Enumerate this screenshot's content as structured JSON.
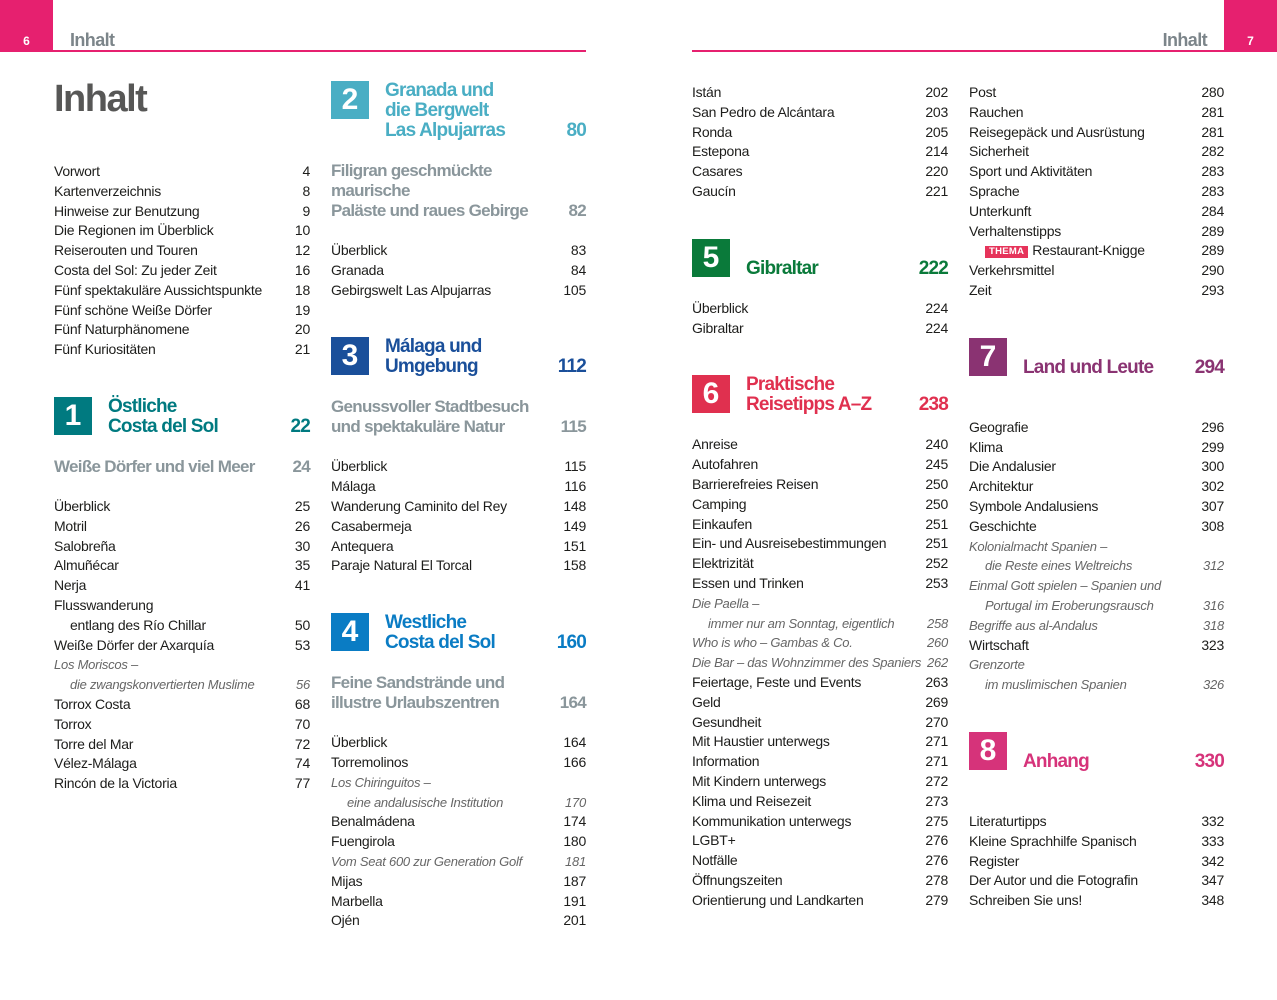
{
  "header": {
    "left_page": "6",
    "left_title": "Inhalt",
    "right_page": "7",
    "right_title": "Inhalt",
    "accent": "#e6206f"
  },
  "main_title": "Inhalt",
  "columns": [
    {
      "blocks": [
        {
          "type": "list",
          "items": [
            {
              "t": "Vorwort",
              "p": "4"
            },
            {
              "t": "Kartenverzeichnis",
              "p": "8"
            },
            {
              "t": "Hinweise zur Benutzung",
              "p": "9"
            },
            {
              "t": "Die Regionen im Überblick",
              "p": "10"
            },
            {
              "t": "Reiserouten und Touren",
              "p": "12"
            },
            {
              "t": "Costa del Sol: Zu jeder Zeit",
              "p": "16"
            },
            {
              "t": "Fünf spektakuläre Aussichtspunkte",
              "p": "18"
            },
            {
              "t": "Fünf schöne Weiße Dörfer",
              "p": "19"
            },
            {
              "t": "Fünf Naturphänomene",
              "p": "20"
            },
            {
              "t": "Fünf Kuriositäten",
              "p": "21"
            }
          ]
        },
        {
          "type": "chapter",
          "num": "1",
          "title": [
            "Östliche",
            "Costa del Sol"
          ],
          "p": "22",
          "color": "#007a80"
        },
        {
          "type": "subtitle",
          "title": [
            "Weiße Dörfer und viel Meer"
          ],
          "p": "24"
        },
        {
          "type": "list",
          "items": [
            {
              "t": "Überblick",
              "p": "25"
            },
            {
              "t": "Motril",
              "p": "26"
            },
            {
              "t": "Salobreña",
              "p": "30"
            },
            {
              "t": "Almuñécar",
              "p": "35"
            },
            {
              "t": "Nerja",
              "p": "41"
            },
            {
              "t": "Flusswanderung"
            },
            {
              "t": "entlang des Río Chillar",
              "p": "50",
              "indent": true
            },
            {
              "t": "Weiße Dörfer der Axarquía",
              "p": "53"
            },
            {
              "t": "Los Moriscos –",
              "theme": true
            },
            {
              "t": "die zwangskonvertierten Muslime",
              "p": "56",
              "theme": true,
              "indent": true
            },
            {
              "t": "Torrox Costa",
              "p": "68"
            },
            {
              "t": "Torrox",
              "p": "70"
            },
            {
              "t": "Torre del Mar",
              "p": "72"
            },
            {
              "t": "Vélez-Málaga",
              "p": "74"
            },
            {
              "t": "Rincón de la Victoria",
              "p": "77"
            }
          ]
        }
      ]
    },
    {
      "blocks": [
        {
          "type": "chapter",
          "num": "2",
          "title": [
            "Granada und",
            "die Bergwelt",
            "Las Alpujarras"
          ],
          "p": "80",
          "color": "#4aaec4"
        },
        {
          "type": "subtitle",
          "title": [
            "Filigran geschmückte maurische",
            "Paläste und raues Gebirge"
          ],
          "p": "82"
        },
        {
          "type": "list",
          "items": [
            {
              "t": "Überblick",
              "p": "83"
            },
            {
              "t": "Granada",
              "p": "84"
            },
            {
              "t": "Gebirgswelt Las Alpujarras",
              "p": "105"
            }
          ]
        },
        {
          "type": "chapter",
          "num": "3",
          "title": [
            "Málaga und",
            "Umgebung"
          ],
          "p": "112",
          "color": "#1a4f9a"
        },
        {
          "type": "subtitle",
          "title": [
            "Genussvoller Stadtbesuch",
            "und spektakuläre Natur"
          ],
          "p": "115"
        },
        {
          "type": "list",
          "items": [
            {
              "t": "Überblick",
              "p": "115"
            },
            {
              "t": "Málaga",
              "p": "116"
            },
            {
              "t": "Wanderung Caminito del Rey",
              "p": "148"
            },
            {
              "t": "Casabermeja",
              "p": "149"
            },
            {
              "t": "Antequera",
              "p": "151"
            },
            {
              "t": "Paraje Natural El Torcal",
              "p": "158"
            }
          ]
        },
        {
          "type": "chapter",
          "num": "4",
          "title": [
            "Westliche",
            "Costa del Sol"
          ],
          "p": "160",
          "color": "#0a7cc4"
        },
        {
          "type": "subtitle",
          "title": [
            "Feine Sandstrände und",
            "illustre Urlaubszentren"
          ],
          "p": "164"
        },
        {
          "type": "list",
          "items": [
            {
              "t": "Überblick",
              "p": "164"
            },
            {
              "t": "Torremolinos",
              "p": "166"
            },
            {
              "t": "Los Chiringuitos –",
              "theme": true
            },
            {
              "t": "eine andalusische Institution",
              "p": "170",
              "theme": true,
              "indent": true
            },
            {
              "t": "Benalmádena",
              "p": "174"
            },
            {
              "t": "Fuengirola",
              "p": "180"
            },
            {
              "t": "Vom Seat 600 zur Generation Golf",
              "p": "181",
              "theme": true
            },
            {
              "t": "Mijas",
              "p": "187"
            },
            {
              "t": "Marbella",
              "p": "191"
            },
            {
              "t": "Ojén",
              "p": "201"
            }
          ]
        }
      ]
    },
    {
      "blocks": [
        {
          "type": "list",
          "items": [
            {
              "t": "Istán",
              "p": "202"
            },
            {
              "t": "San Pedro de Alcántara",
              "p": "203"
            },
            {
              "t": "Ronda",
              "p": "205"
            },
            {
              "t": "Estepona",
              "p": "214"
            },
            {
              "t": "Casares",
              "p": "220"
            },
            {
              "t": "Gaucín",
              "p": "221"
            }
          ]
        },
        {
          "type": "chapter",
          "num": "5",
          "title": [
            "Gibraltar"
          ],
          "p": "222",
          "color": "#0a7a3a"
        },
        {
          "type": "list",
          "items": [
            {
              "t": "Überblick",
              "p": "224"
            },
            {
              "t": "Gibraltar",
              "p": "224"
            }
          ]
        },
        {
          "type": "chapter",
          "num": "6",
          "title": [
            "Praktische",
            "Reisetipps A–Z"
          ],
          "p": "238",
          "color": "#e0304f"
        },
        {
          "type": "list",
          "items": [
            {
              "t": "Anreise",
              "p": "240"
            },
            {
              "t": "Autofahren",
              "p": "245"
            },
            {
              "t": "Barrierefreies Reisen",
              "p": "250"
            },
            {
              "t": "Camping",
              "p": "250"
            },
            {
              "t": "Einkaufen",
              "p": "251"
            },
            {
              "t": "Ein- und Ausreisebestimmungen",
              "p": "251"
            },
            {
              "t": "Elektrizität",
              "p": "252"
            },
            {
              "t": "Essen und Trinken",
              "p": "253"
            },
            {
              "t": "Die Paella –",
              "theme": true
            },
            {
              "t": "immer nur am Sonntag, eigentlich",
              "p": "258",
              "theme": true,
              "indent": true
            },
            {
              "t": "Who is who – Gambas & Co.",
              "p": "260",
              "theme": true
            },
            {
              "t": "Die Bar – das Wohnzimmer des Spaniers",
              "p": "262",
              "theme": true
            },
            {
              "t": "Feiertage, Feste und Events",
              "p": "263"
            },
            {
              "t": "Geld",
              "p": "269"
            },
            {
              "t": "Gesundheit",
              "p": "270"
            },
            {
              "t": "Mit Haustier unterwegs",
              "p": "271"
            },
            {
              "t": "Information",
              "p": "271"
            },
            {
              "t": "Mit Kindern unterwegs",
              "p": "272"
            },
            {
              "t": "Klima und Reisezeit",
              "p": "273"
            },
            {
              "t": "Kommunikation unterwegs",
              "p": "275"
            },
            {
              "t": "LGBT+",
              "p": "276"
            },
            {
              "t": "Notfälle",
              "p": "276"
            },
            {
              "t": "Öffnungszeiten",
              "p": "278"
            },
            {
              "t": "Orientierung und Landkarten",
              "p": "279"
            }
          ]
        }
      ]
    },
    {
      "blocks": [
        {
          "type": "list",
          "items": [
            {
              "t": "Post",
              "p": "280"
            },
            {
              "t": "Rauchen",
              "p": "281"
            },
            {
              "t": "Reisegepäck und Ausrüstung",
              "p": "281"
            },
            {
              "t": "Sicherheit",
              "p": "282"
            },
            {
              "t": "Sport und Aktivitäten",
              "p": "283"
            },
            {
              "t": "Sprache",
              "p": "283"
            },
            {
              "t": "Unterkunft",
              "p": "284"
            },
            {
              "t": "Verhaltenstipps",
              "p": "289"
            },
            {
              "t": "Restaurant-Knigge",
              "p": "289",
              "badge": "THEMA"
            },
            {
              "t": "Verkehrsmittel",
              "p": "290"
            },
            {
              "t": "Zeit",
              "p": "293"
            }
          ]
        },
        {
          "type": "chapter",
          "num": "7",
          "title": [
            "Land und Leute"
          ],
          "p": "294",
          "color": "#8a3372",
          "wide": true
        },
        {
          "type": "list",
          "items": [
            {
              "t": "Geografie",
              "p": "296"
            },
            {
              "t": "Klima",
              "p": "299"
            },
            {
              "t": "Die Andalusier",
              "p": "300"
            },
            {
              "t": "Architektur",
              "p": "302"
            },
            {
              "t": "Symbole Andalusiens",
              "p": "307"
            },
            {
              "t": "Geschichte",
              "p": "308"
            },
            {
              "t": "Kolonialmacht Spanien –",
              "theme": true
            },
            {
              "t": "die Reste eines Weltreichs",
              "p": "312",
              "theme": true,
              "indent": true
            },
            {
              "t": "Einmal Gott spielen – Spanien und",
              "theme": true
            },
            {
              "t": "Portugal im Eroberungsrausch",
              "p": "316",
              "theme": true,
              "indent": true
            },
            {
              "t": "Begriffe aus al-Andalus",
              "p": "318",
              "theme": true
            },
            {
              "t": "Wirtschaft",
              "p": "323"
            },
            {
              "t": "Grenzorte",
              "theme": true
            },
            {
              "t": "im muslimischen Spanien",
              "p": "326",
              "theme": true,
              "indent": true
            }
          ]
        },
        {
          "type": "chapter",
          "num": "8",
          "title": [
            "Anhang"
          ],
          "p": "330",
          "color": "#d6337a",
          "wide": true
        },
        {
          "type": "list",
          "items": [
            {
              "t": "Literaturtipps",
              "p": "332"
            },
            {
              "t": "Kleine Sprachhilfe Spanisch",
              "p": "333"
            },
            {
              "t": "Register",
              "p": "342"
            },
            {
              "t": "Der Autor und die Fotografin",
              "p": "347"
            },
            {
              "t": "Schreiben Sie uns!",
              "p": "348"
            }
          ]
        }
      ]
    }
  ]
}
